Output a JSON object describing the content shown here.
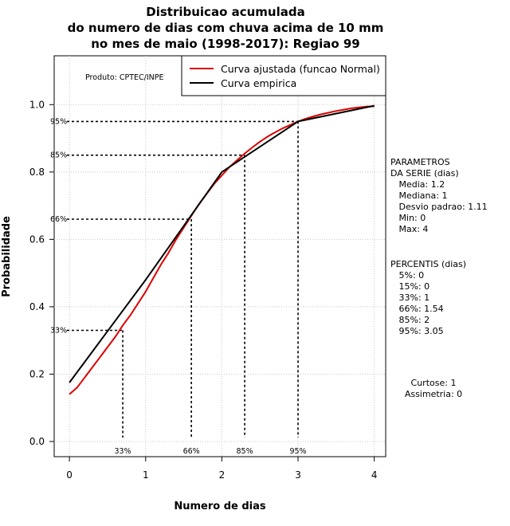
{
  "chart_data": {
    "type": "line",
    "title_lines": [
      "Distribuicao acumulada",
      "do numero de dias com chuva acima de 10 mm",
      "no mes de maio (1998-2017): Regiao 99"
    ],
    "xlabel": "Numero de dias",
    "ylabel": "Probabilidade",
    "xlim": [
      -0.2,
      4.15
    ],
    "ylim": [
      -0.045,
      1.145
    ],
    "x_ticks": [
      0,
      1,
      2,
      3,
      4
    ],
    "y_ticks": [
      0.0,
      0.2,
      0.4,
      0.6,
      0.8,
      1.0
    ],
    "x_tick_labels": [
      "0",
      "1",
      "2",
      "3",
      "4"
    ],
    "y_tick_labels": [
      "0.0",
      "0.2",
      "0.4",
      "0.6",
      "0.8",
      "1.0"
    ],
    "grid": true,
    "producer": "Produto: CPTEC/INPE",
    "series": [
      {
        "name": "Curva ajustada (funcao Normal)",
        "color": "#dd0000",
        "x": [
          0,
          0.1,
          0.2,
          0.3,
          0.4,
          0.5,
          0.6,
          0.7,
          0.8,
          0.9,
          1.0,
          1.1,
          1.2,
          1.3,
          1.4,
          1.5,
          1.6,
          1.7,
          1.8,
          1.9,
          2.0,
          2.1,
          2.2,
          2.3,
          2.4,
          2.5,
          2.6,
          2.7,
          2.8,
          2.9,
          3.0,
          3.1,
          3.2,
          3.3,
          3.4,
          3.5,
          3.6,
          3.7,
          3.8,
          3.9,
          4.0
        ],
        "y": [
          0.14,
          0.16,
          0.19,
          0.22,
          0.25,
          0.28,
          0.31,
          0.345,
          0.375,
          0.41,
          0.445,
          0.485,
          0.525,
          0.56,
          0.6,
          0.635,
          0.67,
          0.705,
          0.735,
          0.765,
          0.79,
          0.815,
          0.835,
          0.855,
          0.873,
          0.89,
          0.905,
          0.918,
          0.93,
          0.94,
          0.95,
          0.958,
          0.965,
          0.971,
          0.976,
          0.981,
          0.985,
          0.989,
          0.992,
          0.994,
          0.995
        ]
      },
      {
        "name": "Curva empirica",
        "color": "#000000",
        "x": [
          0,
          1,
          2,
          3,
          4
        ],
        "y": [
          0.175,
          0.48,
          0.8,
          0.95,
          0.997
        ]
      }
    ],
    "percentile_guides": [
      {
        "label": "33%",
        "p": 0.33,
        "x": 0.7
      },
      {
        "label": "66%",
        "p": 0.66,
        "x": 1.6
      },
      {
        "label": "85%",
        "p": 0.85,
        "x": 2.3
      },
      {
        "label": "95%",
        "p": 0.95,
        "x": 3.0
      }
    ]
  },
  "side_panel": {
    "params_lines": [
      "PARAMETROS",
      "DA SERIE (dias)",
      "   Media: 1.2",
      "   Mediana: 1",
      "   Desvio padrao: 1.11",
      "   Min: 0",
      "   Max: 4"
    ],
    "percentis_lines": [
      "PERCENTIS (dias)",
      "   5%: 0",
      "   15%: 0",
      "   33%: 1",
      "   66%: 1.54",
      "   85%: 2",
      "   95%: 3.05"
    ],
    "shape_lines": [
      "Curtose: 1",
      "Assimetria: 0"
    ]
  }
}
